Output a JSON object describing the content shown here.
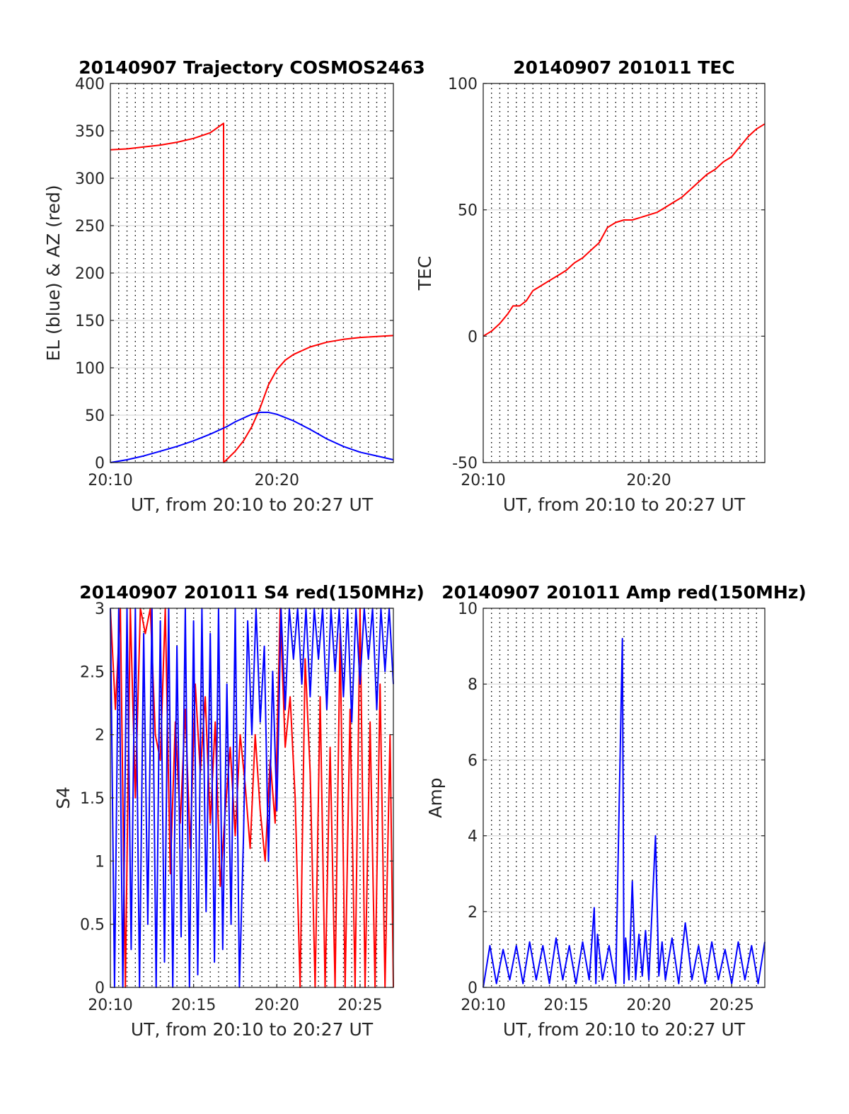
{
  "chart_data": [
    {
      "id": "trajectory",
      "type": "line",
      "title": "20140907 Trajectory COSMOS2463",
      "xlabel": "UT, from 20:10 to 20:27 UT",
      "ylabel": "EL (blue) & AZ (red)",
      "xlim": [
        0,
        17
      ],
      "ylim": [
        0,
        400
      ],
      "xticks": [
        {
          "v": 0,
          "label": "20:10"
        },
        {
          "v": 10,
          "label": "20:20"
        }
      ],
      "yticks": [
        {
          "v": 0,
          "label": "0"
        },
        {
          "v": 50,
          "label": "50"
        },
        {
          "v": 100,
          "label": "100"
        },
        {
          "v": 150,
          "label": "150"
        },
        {
          "v": 200,
          "label": "200"
        },
        {
          "v": 250,
          "label": "250"
        },
        {
          "v": 300,
          "label": "300"
        },
        {
          "v": 350,
          "label": "350"
        },
        {
          "v": 400,
          "label": "400"
        }
      ],
      "grid": true,
      "series": [
        {
          "color": "#ff0000",
          "x": [
            0,
            1,
            2,
            3,
            4,
            5,
            6,
            6.8,
            6.81,
            7.5,
            8,
            8.5,
            9,
            9.5,
            10,
            10.5,
            11,
            12,
            13,
            14,
            15,
            16,
            17
          ],
          "y": [
            330,
            331,
            333,
            335,
            338,
            342,
            348,
            358,
            0,
            12,
            23,
            38,
            58,
            82,
            98,
            108,
            114,
            122,
            127,
            130,
            132,
            133,
            134
          ]
        },
        {
          "color": "#0000ff",
          "x": [
            0,
            1,
            2,
            3,
            4,
            5,
            6,
            7,
            7.5,
            8,
            8.5,
            9,
            9.5,
            10,
            11,
            12,
            13,
            14,
            15,
            16,
            17
          ],
          "y": [
            0,
            3,
            7,
            12,
            17,
            23,
            30,
            38,
            43,
            47,
            51,
            53,
            53,
            51,
            44,
            35,
            25,
            17,
            11,
            7,
            3
          ]
        }
      ]
    },
    {
      "id": "tec",
      "type": "line",
      "title": "20140907 201011 TEC",
      "xlabel": "UT, from 20:10 to 20:27 UT",
      "ylabel": "TEC",
      "xlim": [
        0,
        17
      ],
      "ylim": [
        -50,
        100
      ],
      "xticks": [
        {
          "v": 0,
          "label": "20:10"
        },
        {
          "v": 10,
          "label": "20:20"
        }
      ],
      "yticks": [
        {
          "v": -50,
          "label": "-50"
        },
        {
          "v": 0,
          "label": "0"
        },
        {
          "v": 50,
          "label": "50"
        },
        {
          "v": 100,
          "label": "100"
        }
      ],
      "grid": true,
      "series": [
        {
          "color": "#ff0000",
          "x": [
            0,
            0.5,
            1,
            1.5,
            1.8,
            2.2,
            2.6,
            3,
            3.5,
            4,
            4.5,
            5,
            5.5,
            6,
            6.5,
            7,
            7.5,
            8,
            8.5,
            9,
            9.5,
            10,
            10.5,
            11,
            11.5,
            12,
            12.5,
            13,
            13.5,
            14,
            14.5,
            15,
            15.5,
            16,
            16.5,
            17
          ],
          "y": [
            0,
            2,
            5,
            9,
            12,
            12,
            14,
            18,
            20,
            22,
            24,
            26,
            29,
            31,
            34,
            37,
            43,
            45,
            46,
            46,
            47,
            48,
            49,
            51,
            53,
            55,
            58,
            61,
            64,
            66,
            69,
            71,
            75,
            79,
            82,
            84
          ]
        }
      ]
    },
    {
      "id": "s4",
      "type": "line",
      "title": "20140907 201011 S4 red(150MHz)",
      "xlabel": "UT, from 20:10 to 20:27 UT",
      "ylabel": "S4",
      "xlim": [
        0,
        17
      ],
      "ylim": [
        0,
        3
      ],
      "xticks": [
        {
          "v": 0,
          "label": "20:10"
        },
        {
          "v": 5,
          "label": "20:15"
        },
        {
          "v": 10,
          "label": "20:20"
        },
        {
          "v": 15,
          "label": "20:25"
        }
      ],
      "yticks": [
        {
          "v": 0,
          "label": "0"
        },
        {
          "v": 0.5,
          "label": "0.5"
        },
        {
          "v": 1,
          "label": "1"
        },
        {
          "v": 1.5,
          "label": "1.5"
        },
        {
          "v": 2,
          "label": "2"
        },
        {
          "v": 2.5,
          "label": "2.5"
        },
        {
          "v": 3,
          "label": "3"
        }
      ],
      "grid": true,
      "series": [
        {
          "color": "#ff0000",
          "x": [
            0,
            0.3,
            0.6,
            0.9,
            1.2,
            1.5,
            1.8,
            2.1,
            2.4,
            2.7,
            3.0,
            3.3,
            3.6,
            3.9,
            4.2,
            4.5,
            4.8,
            5.1,
            5.4,
            5.7,
            6.0,
            6.3,
            6.6,
            6.9,
            7.2,
            7.5,
            7.8,
            8.1,
            8.4,
            8.7,
            9.0,
            9.3,
            9.6,
            9.9,
            10.2,
            10.5,
            10.8,
            11.1,
            11.4,
            11.7,
            12.0,
            12.3,
            12.6,
            12.9,
            13.2,
            13.5,
            13.8,
            14.1,
            14.4,
            14.7,
            15.0,
            15.3,
            15.6,
            15.9,
            16.2,
            16.5,
            16.8,
            17
          ],
          "y": [
            3,
            2.2,
            3,
            0,
            3,
            1.5,
            3,
            2.8,
            3,
            2.0,
            1.8,
            3,
            0.9,
            2.1,
            1.3,
            2.2,
            1.1,
            2.4,
            1.7,
            2.3,
            1.3,
            2.1,
            0.8,
            1.4,
            1.9,
            1.2,
            2.0,
            1.6,
            1.1,
            2.0,
            1.4,
            1.0,
            1.8,
            1.3,
            3,
            1.9,
            2.3,
            1.5,
            0,
            2.6,
            1.7,
            0,
            2.3,
            0,
            1.9,
            0,
            2.8,
            0,
            2.2,
            0,
            3,
            0,
            2.1,
            0,
            2.4,
            0,
            2.0,
            0
          ]
        },
        {
          "color": "#0000ff",
          "x": [
            0,
            0.25,
            0.5,
            0.75,
            1.0,
            1.25,
            1.5,
            1.75,
            2.0,
            2.25,
            2.5,
            2.75,
            3.0,
            3.25,
            3.5,
            3.75,
            4.0,
            4.25,
            4.5,
            4.75,
            5.0,
            5.25,
            5.5,
            5.75,
            6.0,
            6.25,
            6.5,
            6.75,
            7.0,
            7.25,
            7.5,
            7.75,
            8.0,
            8.25,
            8.5,
            8.75,
            9.0,
            9.25,
            9.5,
            9.75,
            10.0,
            10.25,
            10.5,
            10.75,
            11.0,
            11.25,
            11.5,
            11.75,
            12.0,
            12.25,
            12.5,
            12.75,
            13.0,
            13.25,
            13.5,
            13.75,
            14.0,
            14.25,
            14.5,
            14.75,
            15.0,
            15.25,
            15.5,
            15.75,
            16.0,
            16.25,
            16.5,
            16.75,
            17
          ],
          "y": [
            3,
            0,
            3,
            0,
            3,
            0.3,
            3,
            0,
            2.8,
            0.5,
            3,
            0,
            2.9,
            0.2,
            3,
            0,
            2.7,
            0.4,
            3,
            0,
            2.9,
            0.1,
            3,
            0.6,
            2.8,
            0.2,
            3,
            0.3,
            2.4,
            0.5,
            3,
            0,
            1.2,
            2.9,
            2.0,
            3,
            2.1,
            2.7,
            1.0,
            2.5,
            1.4,
            3,
            2.2,
            3,
            2.6,
            3,
            2.4,
            3,
            2.3,
            3,
            2.6,
            3,
            2.2,
            3,
            2.5,
            3,
            2.3,
            3,
            2.1,
            3,
            2.4,
            3,
            2.6,
            3,
            2.2,
            3,
            2.5,
            3,
            2.4
          ]
        }
      ]
    },
    {
      "id": "amp",
      "type": "line",
      "title": "20140907 201011 Amp red(150MHz)",
      "xlabel": "UT, from 20:10 to 20:27 UT",
      "ylabel": "Amp",
      "xlim": [
        0,
        17
      ],
      "ylim": [
        0,
        10
      ],
      "xticks": [
        {
          "v": 0,
          "label": "20:10"
        },
        {
          "v": 5,
          "label": "20:15"
        },
        {
          "v": 10,
          "label": "20:20"
        },
        {
          "v": 15,
          "label": "20:25"
        }
      ],
      "yticks": [
        {
          "v": 0,
          "label": "0"
        },
        {
          "v": 2,
          "label": "2"
        },
        {
          "v": 4,
          "label": "4"
        },
        {
          "v": 6,
          "label": "6"
        },
        {
          "v": 8,
          "label": "8"
        },
        {
          "v": 10,
          "label": "10"
        }
      ],
      "grid": true,
      "series": [
        {
          "color": "#0000ff",
          "x": [
            0,
            0.4,
            0.8,
            1.2,
            1.6,
            2.0,
            2.4,
            2.8,
            3.2,
            3.6,
            4.0,
            4.4,
            4.8,
            5.2,
            5.6,
            6.0,
            6.4,
            6.7,
            6.8,
            6.9,
            7.2,
            7.6,
            8.0,
            8.4,
            8.5,
            8.6,
            8.8,
            9.0,
            9.2,
            9.4,
            9.6,
            9.8,
            10.0,
            10.4,
            10.6,
            10.8,
            11.0,
            11.4,
            11.8,
            12.2,
            12.6,
            13.0,
            13.4,
            13.8,
            14.2,
            14.6,
            15.0,
            15.4,
            15.8,
            16.2,
            16.6,
            17
          ],
          "y": [
            0,
            1.1,
            0.1,
            1.0,
            0.2,
            1.1,
            0.1,
            1.2,
            0.2,
            1.1,
            0.1,
            1.3,
            0.2,
            1.1,
            0.1,
            1.2,
            0.2,
            2.1,
            0.1,
            1.4,
            0.2,
            1.1,
            0.1,
            9.2,
            0.1,
            1.3,
            0.2,
            2.8,
            0.2,
            1.4,
            0.3,
            1.5,
            0.2,
            4.0,
            0.3,
            1.2,
            0.2,
            1.3,
            0.1,
            1.7,
            0.2,
            1.1,
            0.1,
            1.2,
            0.2,
            1.0,
            0.1,
            1.2,
            0.2,
            1.1,
            0.1,
            1.2
          ]
        }
      ]
    }
  ]
}
